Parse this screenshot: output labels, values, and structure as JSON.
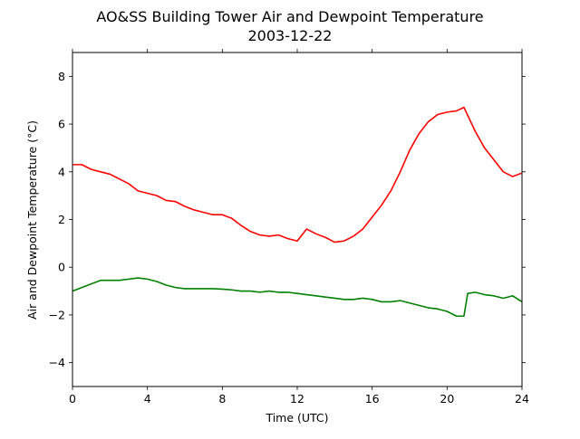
{
  "chart_data": {
    "type": "line",
    "title": "AO&SS Building Tower Air and Dewpoint Temperature",
    "subtitle": "2003-12-22",
    "xlabel": "Time (UTC)",
    "ylabel": "Air and Dewpoint Temperature (°C)",
    "xlim": [
      0,
      24
    ],
    "ylim": [
      -5,
      9
    ],
    "xticks": [
      0,
      4,
      8,
      12,
      16,
      20,
      24
    ],
    "yticks": [
      -4,
      -2,
      0,
      2,
      4,
      6,
      8
    ],
    "grid": false,
    "legend": "none",
    "series": [
      {
        "color": "#ff0000",
        "x": [
          0,
          0.5,
          1,
          1.5,
          2,
          2.5,
          3,
          3.5,
          4,
          4.5,
          5,
          5.5,
          6,
          6.5,
          7,
          7.5,
          8,
          8.5,
          9,
          9.5,
          10,
          10.5,
          11,
          11.5,
          12,
          12.5,
          13,
          13.5,
          14,
          14.5,
          15,
          15.5,
          16,
          16.5,
          17,
          17.5,
          18,
          18.5,
          19,
          19.5,
          20,
          20.5,
          20.9,
          21.2,
          21.5,
          22,
          22.5,
          23,
          23.5,
          24
        ],
        "y": [
          4.3,
          4.3,
          4.1,
          4.0,
          3.9,
          3.7,
          3.5,
          3.2,
          3.1,
          3.0,
          2.8,
          2.75,
          2.55,
          2.4,
          2.3,
          2.2,
          2.2,
          2.05,
          1.75,
          1.5,
          1.35,
          1.3,
          1.35,
          1.2,
          1.1,
          1.6,
          1.4,
          1.25,
          1.05,
          1.1,
          1.3,
          1.6,
          2.1,
          2.6,
          3.2,
          4.0,
          4.9,
          5.6,
          6.1,
          6.4,
          6.5,
          6.55,
          6.7,
          6.2,
          5.7,
          5.0,
          4.5,
          4.0,
          3.8,
          3.95
        ]
      },
      {
        "color": "#008000",
        "x": [
          0,
          0.5,
          1,
          1.5,
          2,
          2.5,
          3,
          3.5,
          4,
          4.5,
          5,
          5.5,
          6,
          6.5,
          7,
          7.5,
          8,
          8.5,
          9,
          9.5,
          10,
          10.5,
          11,
          11.5,
          12,
          12.5,
          13,
          13.5,
          14,
          14.5,
          15,
          15.5,
          16,
          16.5,
          17,
          17.5,
          18,
          18.5,
          19,
          19.5,
          20,
          20.5,
          20.9,
          21.1,
          21.5,
          22,
          22.5,
          23,
          23.5,
          24
        ],
        "y": [
          -1.0,
          -0.85,
          -0.7,
          -0.55,
          -0.55,
          -0.55,
          -0.5,
          -0.45,
          -0.5,
          -0.6,
          -0.75,
          -0.85,
          -0.9,
          -0.9,
          -0.9,
          -0.9,
          -0.92,
          -0.95,
          -1.0,
          -1.0,
          -1.05,
          -1.0,
          -1.05,
          -1.05,
          -1.1,
          -1.15,
          -1.2,
          -1.25,
          -1.3,
          -1.35,
          -1.35,
          -1.3,
          -1.35,
          -1.45,
          -1.45,
          -1.4,
          -1.5,
          -1.6,
          -1.7,
          -1.75,
          -1.85,
          -2.05,
          -2.05,
          -1.1,
          -1.05,
          -1.15,
          -1.2,
          -1.3,
          -1.2,
          -1.45
        ]
      }
    ]
  }
}
